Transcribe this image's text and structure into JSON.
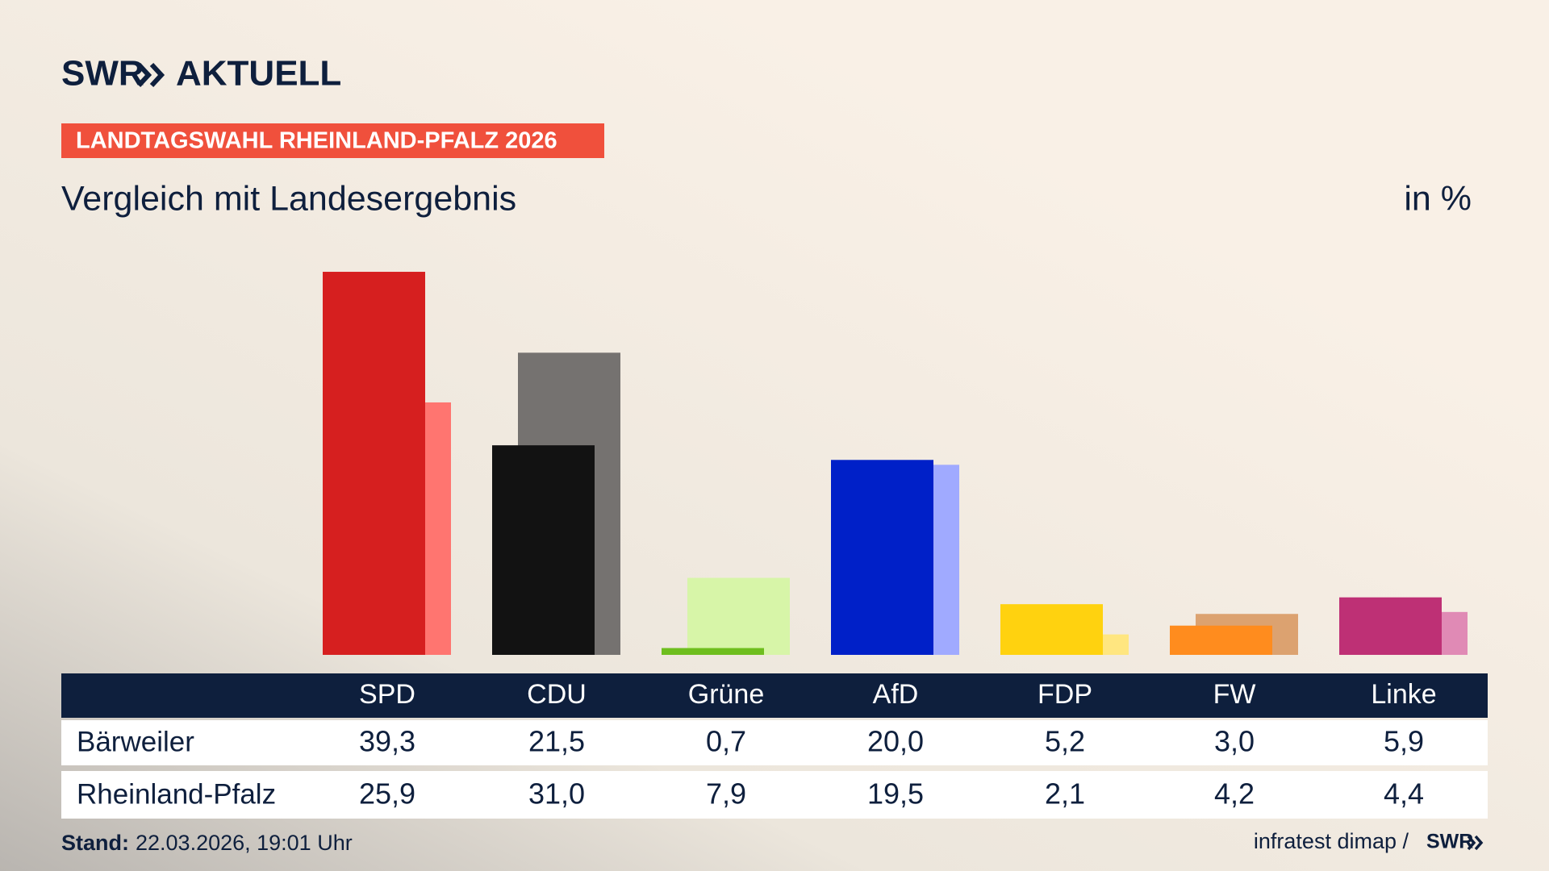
{
  "brand": {
    "name": "SWR",
    "product": "AKTUELL"
  },
  "tag": "LANDTAGSWAHL RHEINLAND-PFALZ 2026",
  "footer": {
    "stand_label": "Stand:",
    "stand": "22.03.2026, 19:01 Uhr",
    "source": "infratest dimap /",
    "source_brand": "SWR"
  },
  "chart_data": {
    "type": "bar",
    "title": "Vergleich mit Landesergebnis",
    "unit": "in %",
    "categories": [
      "SPD",
      "CDU",
      "Grüne",
      "AfD",
      "FDP",
      "FW",
      "Linke"
    ],
    "series": [
      {
        "name": "Bärweiler",
        "values": [
          39.3,
          21.5,
          0.7,
          20.0,
          5.2,
          3.0,
          5.9
        ],
        "value_labels": [
          "39,3",
          "21,5",
          "0,7",
          "20,0",
          "5,2",
          "3,0",
          "5,9"
        ],
        "colors": [
          "#d61f1f",
          "#121212",
          "#6ebe1e",
          "#0020c8",
          "#ffd20f",
          "#ff8c1e",
          "#be3075"
        ]
      },
      {
        "name": "Rheinland-Pfalz",
        "values": [
          25.9,
          31.0,
          7.9,
          19.5,
          2.1,
          4.2,
          4.4
        ],
        "value_labels": [
          "25,9",
          "31,0",
          "7,9",
          "19,5",
          "2,1",
          "4,2",
          "4,4"
        ],
        "colors": [
          "#ff7570",
          "#757270",
          "#d7f5a8",
          "#a0aaff",
          "#ffe680",
          "#dca270",
          "#e08ab5"
        ]
      }
    ]
  }
}
